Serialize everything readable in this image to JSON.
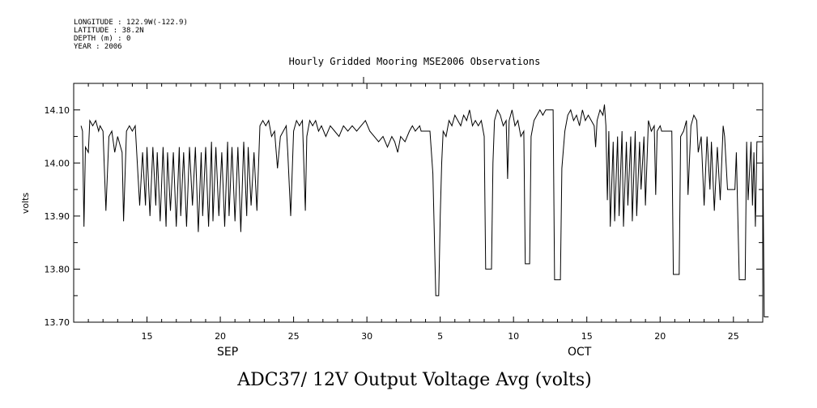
{
  "header": {
    "longitude": "LONGITUDE : 122.9W(-122.9)",
    "latitude": "LATITUDE : 38.2N",
    "depth": "DEPTH (m) : 0",
    "year": "YEAR : 2006"
  },
  "chart_data": {
    "type": "line",
    "title": "Hourly Gridded Mooring MSE2006 Observations",
    "caption": "ADC37/ 12V Output Voltage Avg (volts)",
    "xlabel": "",
    "ylabel": "volts",
    "x_units": "day of year 2006",
    "xlim": [
      253,
      300
    ],
    "ylim": [
      13.7,
      14.15
    ],
    "yticks": [
      13.7,
      13.8,
      13.9,
      14.0,
      14.1
    ],
    "ytick_labels": [
      "13.70",
      "13.80",
      "13.90",
      "14.00",
      "14.10"
    ],
    "xticks": [
      {
        "x": 258,
        "label": "15"
      },
      {
        "x": 263,
        "label": "20"
      },
      {
        "x": 268,
        "label": "25"
      },
      {
        "x": 273,
        "label": "30"
      },
      {
        "x": 278,
        "label": "5"
      },
      {
        "x": 283,
        "label": "10"
      },
      {
        "x": 288,
        "label": "15"
      },
      {
        "x": 293,
        "label": "20"
      },
      {
        "x": 298,
        "label": "25"
      }
    ],
    "months": [
      {
        "x": 263.5,
        "label": "SEP"
      },
      {
        "x": 287.5,
        "label": "OCT"
      }
    ],
    "grid": false,
    "series": [
      {
        "points": [
          [
            253.5,
            14.07
          ],
          [
            253.6,
            14.06
          ],
          [
            253.7,
            13.88
          ],
          [
            253.8,
            14.03
          ],
          [
            254.0,
            14.02
          ],
          [
            254.1,
            14.08
          ],
          [
            254.3,
            14.07
          ],
          [
            254.5,
            14.08
          ],
          [
            254.7,
            14.06
          ],
          [
            254.8,
            14.07
          ],
          [
            255.0,
            14.06
          ],
          [
            255.2,
            13.91
          ],
          [
            255.4,
            14.05
          ],
          [
            255.6,
            14.06
          ],
          [
            255.8,
            14.02
          ],
          [
            256.0,
            14.05
          ],
          [
            256.1,
            14.04
          ],
          [
            256.3,
            14.02
          ],
          [
            256.4,
            13.89
          ],
          [
            256.6,
            14.06
          ],
          [
            256.8,
            14.07
          ],
          [
            257.0,
            14.06
          ],
          [
            257.2,
            14.07
          ],
          [
            257.5,
            13.92
          ],
          [
            257.7,
            14.02
          ],
          [
            257.9,
            13.92
          ],
          [
            258.0,
            14.03
          ],
          [
            258.2,
            13.9
          ],
          [
            258.4,
            14.03
          ],
          [
            258.6,
            13.92
          ],
          [
            258.7,
            14.02
          ],
          [
            258.9,
            13.89
          ],
          [
            259.1,
            14.03
          ],
          [
            259.3,
            13.88
          ],
          [
            259.4,
            14.02
          ],
          [
            259.6,
            13.91
          ],
          [
            259.8,
            14.02
          ],
          [
            260.0,
            13.88
          ],
          [
            260.2,
            14.03
          ],
          [
            260.3,
            13.9
          ],
          [
            260.5,
            14.02
          ],
          [
            260.7,
            13.88
          ],
          [
            260.9,
            14.03
          ],
          [
            261.1,
            13.92
          ],
          [
            261.3,
            14.03
          ],
          [
            261.5,
            13.87
          ],
          [
            261.7,
            14.02
          ],
          [
            261.8,
            13.9
          ],
          [
            262.0,
            14.03
          ],
          [
            262.2,
            13.88
          ],
          [
            262.4,
            14.04
          ],
          [
            262.5,
            13.89
          ],
          [
            262.7,
            14.03
          ],
          [
            262.9,
            13.9
          ],
          [
            263.1,
            14.02
          ],
          [
            263.3,
            13.88
          ],
          [
            263.5,
            14.04
          ],
          [
            263.6,
            13.9
          ],
          [
            263.8,
            14.03
          ],
          [
            264.0,
            13.89
          ],
          [
            264.2,
            14.03
          ],
          [
            264.4,
            13.87
          ],
          [
            264.6,
            14.04
          ],
          [
            264.8,
            13.9
          ],
          [
            264.9,
            14.03
          ],
          [
            265.1,
            13.92
          ],
          [
            265.3,
            14.02
          ],
          [
            265.5,
            13.91
          ],
          [
            265.7,
            14.07
          ],
          [
            265.9,
            14.08
          ],
          [
            266.1,
            14.07
          ],
          [
            266.3,
            14.08
          ],
          [
            266.5,
            14.05
          ],
          [
            266.7,
            14.06
          ],
          [
            266.9,
            13.99
          ],
          [
            267.1,
            14.05
          ],
          [
            267.3,
            14.06
          ],
          [
            267.5,
            14.07
          ],
          [
            267.6,
            14.02
          ],
          [
            267.8,
            13.9
          ],
          [
            268.0,
            14.06
          ],
          [
            268.2,
            14.08
          ],
          [
            268.4,
            14.07
          ],
          [
            268.6,
            14.08
          ],
          [
            268.8,
            13.91
          ],
          [
            268.9,
            14.05
          ],
          [
            269.1,
            14.08
          ],
          [
            269.3,
            14.07
          ],
          [
            269.5,
            14.08
          ],
          [
            269.7,
            14.06
          ],
          [
            269.9,
            14.07
          ],
          [
            270.2,
            14.05
          ],
          [
            270.5,
            14.07
          ],
          [
            270.8,
            14.06
          ],
          [
            271.1,
            14.05
          ],
          [
            271.4,
            14.07
          ],
          [
            271.7,
            14.06
          ],
          [
            272.0,
            14.07
          ],
          [
            272.3,
            14.06
          ],
          [
            272.6,
            14.07
          ],
          [
            272.9,
            14.08
          ],
          [
            273.2,
            14.06
          ],
          [
            273.5,
            14.05
          ],
          [
            273.8,
            14.04
          ],
          [
            274.1,
            14.05
          ],
          [
            274.4,
            14.03
          ],
          [
            274.7,
            14.05
          ],
          [
            274.9,
            14.04
          ],
          [
            275.1,
            14.02
          ],
          [
            275.3,
            14.05
          ],
          [
            275.6,
            14.04
          ],
          [
            275.9,
            14.06
          ],
          [
            276.1,
            14.07
          ],
          [
            276.3,
            14.06
          ],
          [
            276.6,
            14.07
          ],
          [
            276.7,
            14.06
          ],
          [
            277.3,
            14.06
          ],
          [
            277.5,
            13.98
          ],
          [
            277.7,
            13.75
          ],
          [
            277.9,
            13.75
          ],
          [
            278.0,
            13.9
          ],
          [
            278.1,
            14.0
          ],
          [
            278.2,
            14.06
          ],
          [
            278.4,
            14.05
          ],
          [
            278.6,
            14.08
          ],
          [
            278.8,
            14.07
          ],
          [
            279.0,
            14.09
          ],
          [
            279.2,
            14.08
          ],
          [
            279.4,
            14.07
          ],
          [
            279.6,
            14.09
          ],
          [
            279.8,
            14.08
          ],
          [
            280.0,
            14.1
          ],
          [
            280.2,
            14.07
          ],
          [
            280.4,
            14.08
          ],
          [
            280.6,
            14.07
          ],
          [
            280.8,
            14.08
          ],
          [
            281.0,
            14.05
          ],
          [
            281.1,
            13.8
          ],
          [
            281.5,
            13.8
          ],
          [
            281.6,
            14.0
          ],
          [
            281.7,
            14.08
          ],
          [
            281.9,
            14.1
          ],
          [
            282.1,
            14.09
          ],
          [
            282.3,
            14.07
          ],
          [
            282.5,
            14.08
          ],
          [
            282.6,
            13.97
          ],
          [
            282.7,
            14.08
          ],
          [
            282.9,
            14.1
          ],
          [
            283.1,
            14.07
          ],
          [
            283.3,
            14.08
          ],
          [
            283.5,
            14.05
          ],
          [
            283.7,
            14.06
          ],
          [
            283.8,
            13.81
          ],
          [
            284.1,
            13.81
          ],
          [
            284.2,
            14.05
          ],
          [
            284.4,
            14.08
          ],
          [
            284.6,
            14.09
          ],
          [
            284.8,
            14.1
          ],
          [
            285.0,
            14.09
          ],
          [
            285.2,
            14.1
          ],
          [
            285.7,
            14.1
          ],
          [
            285.8,
            13.78
          ],
          [
            286.2,
            13.78
          ],
          [
            286.3,
            13.99
          ],
          [
            286.5,
            14.06
          ],
          [
            286.7,
            14.09
          ],
          [
            286.9,
            14.1
          ],
          [
            287.1,
            14.08
          ],
          [
            287.3,
            14.09
          ],
          [
            287.5,
            14.07
          ],
          [
            287.7,
            14.1
          ],
          [
            287.9,
            14.08
          ],
          [
            288.1,
            14.09
          ],
          [
            288.3,
            14.08
          ],
          [
            288.5,
            14.07
          ],
          [
            288.6,
            14.03
          ],
          [
            288.7,
            14.08
          ],
          [
            288.9,
            14.1
          ],
          [
            289.1,
            14.09
          ],
          [
            289.2,
            14.11
          ],
          [
            289.3,
            14.07
          ],
          [
            289.4,
            13.93
          ],
          [
            289.5,
            14.06
          ],
          [
            289.6,
            13.88
          ],
          [
            289.8,
            14.04
          ],
          [
            289.9,
            13.89
          ],
          [
            290.1,
            14.05
          ],
          [
            290.2,
            13.9
          ],
          [
            290.4,
            14.06
          ],
          [
            290.5,
            13.88
          ],
          [
            290.7,
            14.04
          ],
          [
            290.8,
            13.92
          ],
          [
            291.0,
            14.05
          ],
          [
            291.1,
            13.89
          ],
          [
            291.3,
            14.06
          ],
          [
            291.4,
            13.9
          ],
          [
            291.6,
            14.04
          ],
          [
            291.7,
            13.95
          ],
          [
            291.9,
            14.05
          ],
          [
            292.0,
            13.92
          ],
          [
            292.2,
            14.08
          ],
          [
            292.4,
            14.06
          ],
          [
            292.6,
            14.07
          ],
          [
            292.7,
            13.94
          ],
          [
            292.8,
            14.06
          ],
          [
            293.0,
            14.07
          ],
          [
            293.1,
            14.06
          ],
          [
            293.8,
            14.06
          ],
          [
            293.9,
            13.79
          ],
          [
            294.3,
            13.79
          ],
          [
            294.4,
            14.05
          ],
          [
            294.6,
            14.06
          ],
          [
            294.8,
            14.08
          ],
          [
            294.9,
            13.94
          ],
          [
            295.1,
            14.07
          ],
          [
            295.3,
            14.09
          ],
          [
            295.5,
            14.08
          ],
          [
            295.6,
            14.02
          ],
          [
            295.8,
            14.05
          ],
          [
            296.0,
            13.92
          ],
          [
            296.2,
            14.05
          ],
          [
            296.4,
            13.95
          ],
          [
            296.5,
            14.04
          ],
          [
            296.7,
            13.91
          ],
          [
            296.9,
            14.03
          ],
          [
            297.1,
            13.93
          ],
          [
            297.3,
            14.07
          ],
          [
            297.4,
            14.05
          ],
          [
            297.6,
            13.95
          ],
          [
            297.9,
            13.95
          ],
          [
            298.1,
            13.95
          ],
          [
            298.2,
            14.02
          ],
          [
            298.4,
            13.78
          ],
          [
            298.8,
            13.78
          ],
          [
            298.9,
            14.04
          ],
          [
            299.0,
            13.93
          ],
          [
            299.2,
            14.04
          ],
          [
            299.3,
            13.92
          ],
          [
            299.4,
            14.02
          ],
          [
            299.5,
            13.88
          ],
          [
            299.6,
            14.04
          ],
          [
            300.0,
            14.04
          ],
          [
            300.1,
            13.71
          ],
          [
            300.4,
            13.71
          ]
        ]
      }
    ]
  }
}
